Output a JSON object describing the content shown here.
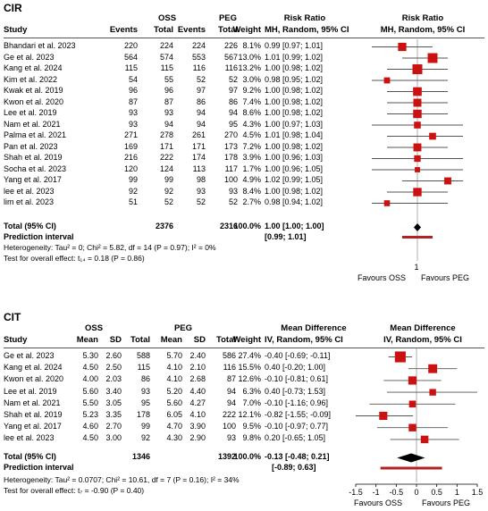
{
  "cir": {
    "title": "CIR",
    "headers": {
      "study": "Study",
      "group1": "OSS",
      "group2": "PEG",
      "events": "Events",
      "total": "Total",
      "weight": "Weight",
      "effect_title": "Risk Ratio",
      "effect_sub": "MH, Random, 95% CI",
      "plot_title": "Risk Ratio",
      "plot_sub": "MH, Random, 95% CI"
    },
    "rows": [
      {
        "study": "Bhandari et al. 2023",
        "e1": "220",
        "t1": "224",
        "e2": "224",
        "t2": "226",
        "weight": "8.1%",
        "ci": "0.99 [0.97; 1.01]"
      },
      {
        "study": "Ge et al. 2023",
        "e1": "564",
        "t1": "574",
        "e2": "553",
        "t2": "567",
        "weight": "13.0%",
        "ci": "1.01 [0.99; 1.02]"
      },
      {
        "study": "Kang et al. 2024",
        "e1": "115",
        "t1": "115",
        "e2": "116",
        "t2": "116",
        "weight": "13.2%",
        "ci": "1.00 [0.98; 1.02]"
      },
      {
        "study": "Kim et al. 2022",
        "e1": "54",
        "t1": "55",
        "e2": "52",
        "t2": "52",
        "weight": "3.0%",
        "ci": "0.98 [0.95; 1.02]"
      },
      {
        "study": "Kwak et al. 2019",
        "e1": "96",
        "t1": "96",
        "e2": "97",
        "t2": "97",
        "weight": "9.2%",
        "ci": "1.00 [0.98; 1.02]"
      },
      {
        "study": "Kwon et al. 2020",
        "e1": "87",
        "t1": "87",
        "e2": "86",
        "t2": "86",
        "weight": "7.4%",
        "ci": "1.00 [0.98; 1.02]"
      },
      {
        "study": "Lee et al. 2019",
        "e1": "93",
        "t1": "93",
        "e2": "94",
        "t2": "94",
        "weight": "8.6%",
        "ci": "1.00 [0.98; 1.02]"
      },
      {
        "study": "Nam et al. 2021",
        "e1": "93",
        "t1": "94",
        "e2": "94",
        "t2": "95",
        "weight": "4.3%",
        "ci": "1.00 [0.97; 1.03]"
      },
      {
        "study": "Palma et al. 2021",
        "e1": "271",
        "t1": "278",
        "e2": "261",
        "t2": "270",
        "weight": "4.5%",
        "ci": "1.01 [0.98; 1.04]"
      },
      {
        "study": "Pan et al. 2023",
        "e1": "169",
        "t1": "171",
        "e2": "171",
        "t2": "173",
        "weight": "7.2%",
        "ci": "1.00 [0.98; 1.02]"
      },
      {
        "study": "Shah et al. 2019",
        "e1": "216",
        "t1": "222",
        "e2": "174",
        "t2": "178",
        "weight": "3.9%",
        "ci": "1.00 [0.96; 1.03]"
      },
      {
        "study": "Socha et al. 2023",
        "e1": "120",
        "t1": "124",
        "e2": "113",
        "t2": "117",
        "weight": "1.7%",
        "ci": "1.00 [0.96; 1.05]"
      },
      {
        "study": "Yang et al. 2017",
        "e1": "99",
        "t1": "99",
        "e2": "98",
        "t2": "100",
        "weight": "4.9%",
        "ci": "1.02 [0.99; 1.05]"
      },
      {
        "study": "lee et al. 2023",
        "e1": "92",
        "t1": "92",
        "e2": "93",
        "t2": "93",
        "weight": "8.4%",
        "ci": "1.00 [0.98; 1.02]"
      },
      {
        "study": "lim et al. 2023",
        "e1": "51",
        "t1": "52",
        "e2": "52",
        "t2": "52",
        "weight": "2.7%",
        "ci": "0.98 [0.94; 1.02]"
      }
    ],
    "total": {
      "label": "Total (95% CI)",
      "t1": "2376",
      "t2": "2316",
      "weight": "100.0%",
      "ci": "1.00 [1.00; 1.00]"
    },
    "prediction": {
      "label": "Prediction interval",
      "ci": "[0.99; 1.01]"
    },
    "heterogeneity": "Heterogeneity: Tau² = 0; Chi² = 5.82, df = 14 (P = 0.97); I² = 0%",
    "overall_effect": "Test for overall effect: t₁₄ = 0.18 (P = 0.86)",
    "axis_tick": "1",
    "favours_left": "Favours OSS",
    "favours_right": "Favours PEG"
  },
  "cit": {
    "title": "CIT",
    "headers": {
      "study": "Study",
      "group1": "OSS",
      "group2": "PEG",
      "mean": "Mean",
      "sd": "SD",
      "total": "Total",
      "weight": "Weight",
      "effect_title": "Mean Difference",
      "effect_sub": "IV, Random, 95% CI",
      "plot_title": "Mean Difference",
      "plot_sub": "IV, Random, 95% CI"
    },
    "rows": [
      {
        "study": "Ge et al. 2023",
        "m1": "5.30",
        "sd1": "2.60",
        "t1": "588",
        "m2": "5.70",
        "sd2": "2.40",
        "t2": "586",
        "weight": "27.4%",
        "ci": "-0.40 [-0.69; -0.11]"
      },
      {
        "study": "Kang et al. 2024",
        "m1": "4.50",
        "sd1": "2.50",
        "t1": "115",
        "m2": "4.10",
        "sd2": "2.10",
        "t2": "116",
        "weight": "15.5%",
        "ci": "0.40 [-0.20; 1.00]"
      },
      {
        "study": "Kwon et al. 2020",
        "m1": "4.00",
        "sd1": "2.03",
        "t1": "86",
        "m2": "4.10",
        "sd2": "2.68",
        "t2": "87",
        "weight": "12.6%",
        "ci": "-0.10 [-0.81; 0.61]"
      },
      {
        "study": "Lee et al. 2019",
        "m1": "5.60",
        "sd1": "3.40",
        "t1": "93",
        "m2": "5.20",
        "sd2": "4.40",
        "t2": "94",
        "weight": "6.3%",
        "ci": "0.40 [-0.73; 1.53]"
      },
      {
        "study": "Nam et al. 2021",
        "m1": "5.50",
        "sd1": "3.05",
        "t1": "95",
        "m2": "5.60",
        "sd2": "4.27",
        "t2": "94",
        "weight": "7.0%",
        "ci": "-0.10 [-1.16; 0.96]"
      },
      {
        "study": "Shah et al. 2019",
        "m1": "5.23",
        "sd1": "3.35",
        "t1": "178",
        "m2": "6.05",
        "sd2": "4.10",
        "t2": "222",
        "weight": "12.1%",
        "ci": "-0.82 [-1.55; -0.09]"
      },
      {
        "study": "Yang et al. 2017",
        "m1": "4.60",
        "sd1": "2.70",
        "t1": "99",
        "m2": "4.70",
        "sd2": "3.90",
        "t2": "100",
        "weight": "9.5%",
        "ci": "-0.10 [-0.97; 0.77]"
      },
      {
        "study": "lee et al. 2023",
        "m1": "4.50",
        "sd1": "3.00",
        "t1": "92",
        "m2": "4.30",
        "sd2": "2.90",
        "t2": "93",
        "weight": "9.8%",
        "ci": "0.20 [-0.65; 1.05]"
      }
    ],
    "total": {
      "label": "Total (95% CI)",
      "t1": "1346",
      "t2": "1392",
      "weight": "100.0%",
      "ci": "-0.13 [-0.48; 0.21]"
    },
    "prediction": {
      "label": "Prediction interval",
      "ci": "[-0.89; 0.63]"
    },
    "heterogeneity": "Heterogeneity: Tau² = 0.0707; Chi² = 10.61, df = 7 (P = 0.16); I² = 34%",
    "overall_effect": "Test for overall effect: t₇ = -0.90 (P = 0.40)",
    "axis_ticks": [
      "-1.5",
      "-1",
      "-0.5",
      "0",
      "0.5",
      "1",
      "1.5"
    ],
    "favours_left": "Favours OSS",
    "favours_right": "Favours PEG"
  },
  "colors": {
    "marker": "#cc1111",
    "pred": "#b22222",
    "diamond": "#000000",
    "line": "#555555"
  },
  "chart_data": [
    {
      "type": "forest",
      "measure": "Risk Ratio",
      "xlim": [
        0.97,
        1.03
      ],
      "null_value": 1,
      "series": [
        {
          "study": "Bhandari et al. 2023",
          "est": 0.99,
          "lo": 0.97,
          "hi": 1.01,
          "weight": 8.1
        },
        {
          "study": "Ge et al. 2023",
          "est": 1.01,
          "lo": 0.99,
          "hi": 1.02,
          "weight": 13.0
        },
        {
          "study": "Kang et al. 2024",
          "est": 1.0,
          "lo": 0.98,
          "hi": 1.02,
          "weight": 13.2
        },
        {
          "study": "Kim et al. 2022",
          "est": 0.98,
          "lo": 0.95,
          "hi": 1.02,
          "weight": 3.0
        },
        {
          "study": "Kwak et al. 2019",
          "est": 1.0,
          "lo": 0.98,
          "hi": 1.02,
          "weight": 9.2
        },
        {
          "study": "Kwon et al. 2020",
          "est": 1.0,
          "lo": 0.98,
          "hi": 1.02,
          "weight": 7.4
        },
        {
          "study": "Lee et al. 2019",
          "est": 1.0,
          "lo": 0.98,
          "hi": 1.02,
          "weight": 8.6
        },
        {
          "study": "Nam et al. 2021",
          "est": 1.0,
          "lo": 0.97,
          "hi": 1.03,
          "weight": 4.3
        },
        {
          "study": "Palma et al. 2021",
          "est": 1.01,
          "lo": 0.98,
          "hi": 1.04,
          "weight": 4.5
        },
        {
          "study": "Pan et al. 2023",
          "est": 1.0,
          "lo": 0.98,
          "hi": 1.02,
          "weight": 7.2
        },
        {
          "study": "Shah et al. 2019",
          "est": 1.0,
          "lo": 0.96,
          "hi": 1.03,
          "weight": 3.9
        },
        {
          "study": "Socha et al. 2023",
          "est": 1.0,
          "lo": 0.96,
          "hi": 1.05,
          "weight": 1.7
        },
        {
          "study": "Yang et al. 2017",
          "est": 1.02,
          "lo": 0.99,
          "hi": 1.05,
          "weight": 4.9
        },
        {
          "study": "lee et al. 2023",
          "est": 1.0,
          "lo": 0.98,
          "hi": 1.02,
          "weight": 8.4
        },
        {
          "study": "lim et al. 2023",
          "est": 0.98,
          "lo": 0.94,
          "hi": 1.02,
          "weight": 2.7
        }
      ],
      "pooled": {
        "est": 1.0,
        "lo": 1.0,
        "hi": 1.0
      },
      "prediction": {
        "lo": 0.99,
        "hi": 1.01
      }
    },
    {
      "type": "forest",
      "measure": "Mean Difference",
      "xlim": [
        -1.5,
        1.5
      ],
      "null_value": 0,
      "series": [
        {
          "study": "Ge et al. 2023",
          "est": -0.4,
          "lo": -0.69,
          "hi": -0.11,
          "weight": 27.4
        },
        {
          "study": "Kang et al. 2024",
          "est": 0.4,
          "lo": -0.2,
          "hi": 1.0,
          "weight": 15.5
        },
        {
          "study": "Kwon et al. 2020",
          "est": -0.1,
          "lo": -0.81,
          "hi": 0.61,
          "weight": 12.6
        },
        {
          "study": "Lee et al. 2019",
          "est": 0.4,
          "lo": -0.73,
          "hi": 1.53,
          "weight": 6.3
        },
        {
          "study": "Nam et al. 2021",
          "est": -0.1,
          "lo": -1.16,
          "hi": 0.96,
          "weight": 7.0
        },
        {
          "study": "Shah et al. 2019",
          "est": -0.82,
          "lo": -1.55,
          "hi": -0.09,
          "weight": 12.1
        },
        {
          "study": "Yang et al. 2017",
          "est": -0.1,
          "lo": -0.97,
          "hi": 0.77,
          "weight": 9.5
        },
        {
          "study": "lee et al. 2023",
          "est": 0.2,
          "lo": -0.65,
          "hi": 1.05,
          "weight": 9.8
        }
      ],
      "pooled": {
        "est": -0.13,
        "lo": -0.48,
        "hi": 0.21
      },
      "prediction": {
        "lo": -0.89,
        "hi": 0.63
      }
    }
  ]
}
